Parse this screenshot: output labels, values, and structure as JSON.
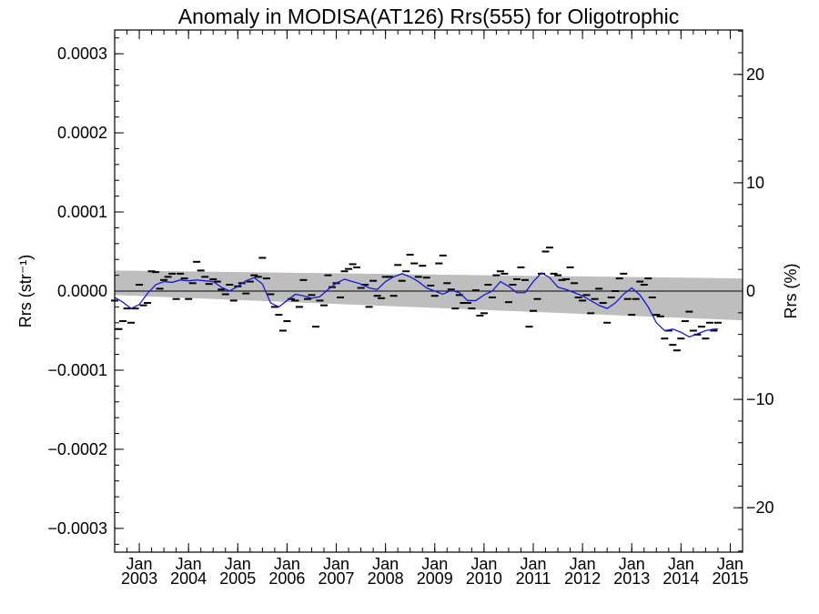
{
  "chart_data": {
    "type": "line",
    "title": "Anomaly in MODISA(AT126) Rrs(555) for Oligotrophic",
    "ylabel_left": "Rrs (str⁻¹)",
    "ylabel_right": "Rrs (%)",
    "y_left_range": [
      -0.00033,
      0.00033
    ],
    "y_left_ticks": [
      {
        "value": 0.0003,
        "label": "0.0003"
      },
      {
        "value": 0.0002,
        "label": "0.0002"
      },
      {
        "value": 0.0001,
        "label": "0.0001"
      },
      {
        "value": 0.0,
        "label": "0.0000"
      },
      {
        "value": -0.0001,
        "label": "−0.0001"
      },
      {
        "value": -0.0002,
        "label": "−0.0002"
      },
      {
        "value": -0.0003,
        "label": "−0.0003"
      }
    ],
    "y_right_range": [
      -24.1,
      24.1
    ],
    "y_right_ticks": [
      {
        "value": 20,
        "label": "20"
      },
      {
        "value": 10,
        "label": "10"
      },
      {
        "value": 0,
        "label": "0"
      },
      {
        "value": -10,
        "label": "−10"
      },
      {
        "value": -20,
        "label": "−20"
      }
    ],
    "x_range": [
      "2002-07",
      "2015-04"
    ],
    "x_ticks": [
      {
        "date": "2003-01",
        "label_top": "Jan",
        "label_bottom": "2003"
      },
      {
        "date": "2004-01",
        "label_top": "Jan",
        "label_bottom": "2004"
      },
      {
        "date": "2005-01",
        "label_top": "Jan",
        "label_bottom": "2005"
      },
      {
        "date": "2006-01",
        "label_top": "Jan",
        "label_bottom": "2006"
      },
      {
        "date": "2007-01",
        "label_top": "Jan",
        "label_bottom": "2007"
      },
      {
        "date": "2008-01",
        "label_top": "Jan",
        "label_bottom": "2008"
      },
      {
        "date": "2009-01",
        "label_top": "Jan",
        "label_bottom": "2009"
      },
      {
        "date": "2010-01",
        "label_top": "Jan",
        "label_bottom": "2010"
      },
      {
        "date": "2011-01",
        "label_top": "Jan",
        "label_bottom": "2011"
      },
      {
        "date": "2012-01",
        "label_top": "Jan",
        "label_bottom": "2012"
      },
      {
        "date": "2013-01",
        "label_top": "Jan",
        "label_bottom": "2013"
      },
      {
        "date": "2014-01",
        "label_top": "Jan",
        "label_bottom": "2014"
      },
      {
        "date": "2015-01",
        "label_top": "Jan",
        "label_bottom": "2015"
      }
    ],
    "uncertainty_band": {
      "color": "#bebebe",
      "upper": [
        [
          "2002-07",
          2.6e-05
        ],
        [
          "2015-04",
          1.6e-05
        ]
      ],
      "lower": [
        [
          "2002-07",
          -5e-06
        ],
        [
          "2015-04",
          -3.7e-05
        ]
      ]
    },
    "zero_line": {
      "value": 0,
      "color": "#000000"
    },
    "series": [
      {
        "kind": "monthly_markers",
        "color": "#000000",
        "points": [
          [
            "2002-07",
            -1.2e-05
          ],
          [
            "2002-08",
            -4.8e-05
          ],
          [
            "2002-09",
            -3.8e-05
          ],
          [
            "2002-10",
            -2.2e-05
          ],
          [
            "2002-11",
            -4e-05
          ],
          [
            "2002-12",
            -2.2e-05
          ],
          [
            "2003-01",
            8e-06
          ],
          [
            "2003-02",
            -1.8e-05
          ],
          [
            "2003-03",
            -1.5e-05
          ],
          [
            "2003-04",
            2.5e-05
          ],
          [
            "2003-05",
            2.4e-05
          ],
          [
            "2003-06",
            3e-06
          ],
          [
            "2003-07",
            1.4e-05
          ],
          [
            "2003-08",
            1.8e-05
          ],
          [
            "2003-09",
            2.2e-05
          ],
          [
            "2003-10",
            -1e-05
          ],
          [
            "2003-11",
            2.2e-05
          ],
          [
            "2003-12",
            1.6e-05
          ],
          [
            "2004-01",
            -1e-05
          ],
          [
            "2004-02",
            1e-05
          ],
          [
            "2004-03",
            3.7e-05
          ],
          [
            "2004-04",
            2.6e-05
          ],
          [
            "2004-05",
            1.8e-05
          ],
          [
            "2004-06",
            9e-06
          ],
          [
            "2004-07",
            1.5e-05
          ],
          [
            "2004-08",
            1.2e-05
          ],
          [
            "2004-09",
            2e-06
          ],
          [
            "2004-10",
            -4e-06
          ],
          [
            "2004-11",
            8e-06
          ],
          [
            "2004-12",
            -1.2e-05
          ],
          [
            "2005-01",
            6e-06
          ],
          [
            "2005-02",
            1e-05
          ],
          [
            "2005-03",
            -3e-06
          ],
          [
            "2005-04",
            1.2e-05
          ],
          [
            "2005-05",
            2e-05
          ],
          [
            "2005-06",
            1.8e-05
          ],
          [
            "2005-07",
            4.2e-05
          ],
          [
            "2005-08",
            1.6e-05
          ],
          [
            "2005-09",
            -4e-06
          ],
          [
            "2005-10",
            -2e-05
          ],
          [
            "2005-11",
            -3e-05
          ],
          [
            "2005-12",
            -5e-05
          ],
          [
            "2006-01",
            -3.8e-05
          ],
          [
            "2006-02",
            -1e-05
          ],
          [
            "2006-03",
            -1.2e-05
          ],
          [
            "2006-04",
            -2e-05
          ],
          [
            "2006-05",
            1.4e-05
          ],
          [
            "2006-06",
            -1e-05
          ],
          [
            "2006-07",
            -5e-06
          ],
          [
            "2006-08",
            -4.5e-05
          ],
          [
            "2006-09",
            -1.2e-05
          ],
          [
            "2006-10",
            -1.8e-05
          ],
          [
            "2006-11",
            2e-05
          ],
          [
            "2006-12",
            5e-06
          ],
          [
            "2007-01",
            1e-05
          ],
          [
            "2007-02",
            -8e-06
          ],
          [
            "2007-03",
            2.5e-05
          ],
          [
            "2007-04",
            2.8e-05
          ],
          [
            "2007-05",
            3.4e-05
          ],
          [
            "2007-06",
            3e-05
          ],
          [
            "2007-07",
            4e-06
          ],
          [
            "2007-08",
            8e-06
          ],
          [
            "2007-09",
            -2e-05
          ],
          [
            "2007-10",
            1.3e-05
          ],
          [
            "2007-11",
            -6e-06
          ],
          [
            "2007-12",
            -9e-06
          ],
          [
            "2008-01",
            1.8e-05
          ],
          [
            "2008-02",
            1.8e-05
          ],
          [
            "2008-03",
            -6e-06
          ],
          [
            "2008-04",
            3.3e-05
          ],
          [
            "2008-05",
            1.3e-05
          ],
          [
            "2008-06",
            2.5e-05
          ],
          [
            "2008-07",
            4.6e-05
          ],
          [
            "2008-08",
            3.5e-05
          ],
          [
            "2008-09",
            1.8e-05
          ],
          [
            "2008-10",
            3.2e-05
          ],
          [
            "2008-11",
            1.7e-05
          ],
          [
            "2008-12",
            7e-06
          ],
          [
            "2009-01",
            -6e-06
          ],
          [
            "2009-02",
            3.5e-05
          ],
          [
            "2009-03",
            4.5e-05
          ],
          [
            "2009-04",
            1e-05
          ],
          [
            "2009-05",
            2e-06
          ],
          [
            "2009-06",
            -2.2e-05
          ],
          [
            "2009-07",
            -5e-06
          ],
          [
            "2009-08",
            -1.5e-05
          ],
          [
            "2009-09",
            -1.5e-05
          ],
          [
            "2009-10",
            -2.2e-05
          ],
          [
            "2009-11",
            1e-06
          ],
          [
            "2009-12",
            -3.1e-05
          ],
          [
            "2010-01",
            -2.8e-05
          ],
          [
            "2010-02",
            8e-06
          ],
          [
            "2010-03",
            -8e-06
          ],
          [
            "2010-04",
            2e-05
          ],
          [
            "2010-05",
            2.5e-05
          ],
          [
            "2010-06",
            2.2e-05
          ],
          [
            "2010-07",
            -1.4e-05
          ],
          [
            "2010-08",
            8e-06
          ],
          [
            "2010-09",
            1.5e-05
          ],
          [
            "2010-10",
            3e-05
          ],
          [
            "2010-11",
            1.4e-05
          ],
          [
            "2010-12",
            -4.5e-05
          ],
          [
            "2011-01",
            -2.5e-05
          ],
          [
            "2011-02",
            -1e-05
          ],
          [
            "2011-03",
            2.2e-05
          ],
          [
            "2011-04",
            5e-05
          ],
          [
            "2011-05",
            5.5e-05
          ],
          [
            "2011-06",
            2.2e-05
          ],
          [
            "2011-07",
            2e-05
          ],
          [
            "2011-08",
            1.4e-05
          ],
          [
            "2011-09",
            1.5e-05
          ],
          [
            "2011-10",
            3e-05
          ],
          [
            "2011-11",
            1e-05
          ],
          [
            "2011-12",
            -8e-06
          ],
          [
            "2012-01",
            -1.2e-05
          ],
          [
            "2012-02",
            -5e-06
          ],
          [
            "2012-03",
            -2.8e-05
          ],
          [
            "2012-04",
            -1e-05
          ],
          [
            "2012-05",
            3e-06
          ],
          [
            "2012-06",
            -1.5e-05
          ],
          [
            "2012-07",
            -4e-05
          ],
          [
            "2012-08",
            -8e-06
          ],
          [
            "2012-09",
            0.0
          ],
          [
            "2012-10",
            1.6e-05
          ],
          [
            "2012-11",
            2.2e-05
          ],
          [
            "2012-12",
            -1e-05
          ],
          [
            "2013-01",
            -3e-05
          ],
          [
            "2013-02",
            -1e-05
          ],
          [
            "2013-03",
            1.2e-05
          ],
          [
            "2013-04",
            8e-06
          ],
          [
            "2013-05",
            1.6e-05
          ],
          [
            "2013-06",
            -8e-06
          ],
          [
            "2013-07",
            -3e-05
          ],
          [
            "2013-08",
            -3.2e-05
          ],
          [
            "2013-09",
            -6e-05
          ],
          [
            "2013-10",
            -5e-05
          ],
          [
            "2013-11",
            -6.8e-05
          ],
          [
            "2013-12",
            -7.5e-05
          ],
          [
            "2014-01",
            -6e-05
          ],
          [
            "2014-02",
            -3.8e-05
          ],
          [
            "2014-03",
            -2.6e-05
          ],
          [
            "2014-04",
            -5e-05
          ],
          [
            "2014-05",
            -5.5e-05
          ],
          [
            "2014-06",
            -4.5e-05
          ],
          [
            "2014-07",
            -6e-05
          ],
          [
            "2014-08",
            -4e-05
          ],
          [
            "2014-09",
            -5e-05
          ],
          [
            "2014-10",
            -4e-05
          ]
        ]
      },
      {
        "kind": "smoothed_line",
        "color": "#1818d8",
        "points": [
          [
            "2002-07",
            -8e-06
          ],
          [
            "2002-09",
            -1.4e-05
          ],
          [
            "2002-11",
            -2.2e-05
          ],
          [
            "2003-01",
            -1.7e-05
          ],
          [
            "2003-03",
            -3e-06
          ],
          [
            "2003-05",
            8e-06
          ],
          [
            "2003-07",
            1.2e-05
          ],
          [
            "2003-09",
            1.1e-05
          ],
          [
            "2003-11",
            1.4e-05
          ],
          [
            "2004-01",
            1.3e-05
          ],
          [
            "2004-03",
            1.4e-05
          ],
          [
            "2004-05",
            1.3e-05
          ],
          [
            "2004-07",
            1.2e-05
          ],
          [
            "2004-09",
            5e-06
          ],
          [
            "2004-11",
            0.0
          ],
          [
            "2005-01",
            6e-06
          ],
          [
            "2005-03",
            1.3e-05
          ],
          [
            "2005-05",
            1.7e-05
          ],
          [
            "2005-07",
            9e-06
          ],
          [
            "2005-09",
            -1.5e-05
          ],
          [
            "2005-11",
            -2e-05
          ],
          [
            "2006-01",
            -1.2e-05
          ],
          [
            "2006-03",
            -4e-06
          ],
          [
            "2006-05",
            -6e-06
          ],
          [
            "2006-07",
            -9e-06
          ],
          [
            "2006-09",
            -7e-06
          ],
          [
            "2006-11",
            2e-06
          ],
          [
            "2007-01",
            1e-05
          ],
          [
            "2007-03",
            1.5e-05
          ],
          [
            "2007-05",
            1.2e-05
          ],
          [
            "2007-07",
            9e-06
          ],
          [
            "2007-09",
            4e-06
          ],
          [
            "2007-11",
            2e-06
          ],
          [
            "2008-01",
            1.2e-05
          ],
          [
            "2008-03",
            1.8e-05
          ],
          [
            "2008-05",
            2.2e-05
          ],
          [
            "2008-07",
            1.8e-05
          ],
          [
            "2008-09",
            1.2e-05
          ],
          [
            "2008-11",
            4e-06
          ],
          [
            "2009-01",
            0.0
          ],
          [
            "2009-03",
            -4e-06
          ],
          [
            "2009-05",
            1e-06
          ],
          [
            "2009-07",
            -2e-06
          ],
          [
            "2009-09",
            -1.2e-05
          ],
          [
            "2009-11",
            -1.2e-05
          ],
          [
            "2010-01",
            -5e-06
          ],
          [
            "2010-03",
            0.0
          ],
          [
            "2010-05",
            1.2e-05
          ],
          [
            "2010-07",
            6e-06
          ],
          [
            "2010-09",
            -2e-06
          ],
          [
            "2010-11",
            -2e-06
          ],
          [
            "2011-01",
            1.2e-05
          ],
          [
            "2011-03",
            2.3e-05
          ],
          [
            "2011-05",
            1.7e-05
          ],
          [
            "2011-07",
            5e-06
          ],
          [
            "2011-09",
            2e-06
          ],
          [
            "2011-11",
            -2e-06
          ],
          [
            "2012-01",
            -6e-06
          ],
          [
            "2012-03",
            -1.2e-05
          ],
          [
            "2012-05",
            -1.8e-05
          ],
          [
            "2012-07",
            -2.2e-05
          ],
          [
            "2012-09",
            -1.5e-05
          ],
          [
            "2012-11",
            -4e-06
          ],
          [
            "2013-01",
            4e-06
          ],
          [
            "2013-03",
            -5e-06
          ],
          [
            "2013-05",
            -2e-05
          ],
          [
            "2013-07",
            -4e-05
          ],
          [
            "2013-09",
            -5e-05
          ],
          [
            "2013-11",
            -4.8e-05
          ],
          [
            "2014-01",
            -5.2e-05
          ],
          [
            "2014-03",
            -5.8e-05
          ],
          [
            "2014-05",
            -5.4e-05
          ],
          [
            "2014-07",
            -5e-05
          ],
          [
            "2014-09",
            -4.8e-05
          ],
          [
            "2014-10",
            -4.8e-05
          ]
        ]
      }
    ],
    "grid": false
  }
}
